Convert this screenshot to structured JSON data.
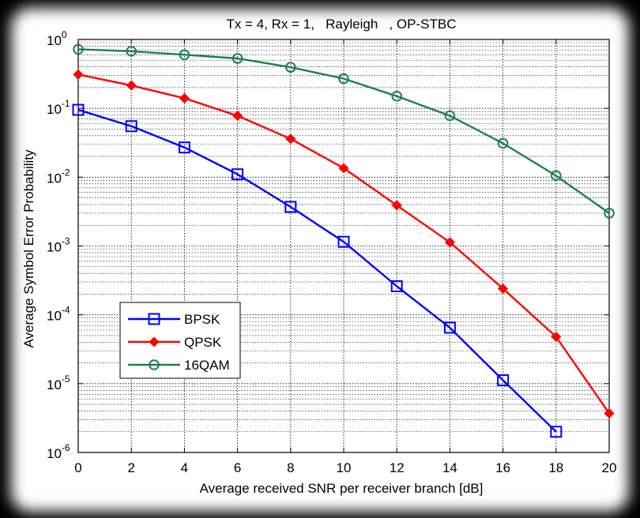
{
  "chart_data": {
    "type": "line",
    "title": "Tx = 4, Rx = 1,   Rayleigh   , OP-STBC",
    "xlabel": "Average received SNR per receiver branch [dB]",
    "ylabel": "Average Symbol Error Probability",
    "xlim": [
      0,
      20
    ],
    "ylim": [
      1e-06,
      1
    ],
    "yscale": "log",
    "grid": true,
    "legend_position": "lower-left",
    "x_ticks": [
      "0",
      "2",
      "4",
      "6",
      "8",
      "10",
      "12",
      "14",
      "16",
      "18",
      "20"
    ],
    "y_ticks": [
      {
        "base": "10",
        "exp": "0"
      },
      {
        "base": "10",
        "exp": "-1"
      },
      {
        "base": "10",
        "exp": "-2"
      },
      {
        "base": "10",
        "exp": "-3"
      },
      {
        "base": "10",
        "exp": "-4"
      },
      {
        "base": "10",
        "exp": "-5"
      },
      {
        "base": "10",
        "exp": "-6"
      }
    ],
    "series": [
      {
        "name": "BPSK",
        "color": "#0000ff",
        "marker": "square",
        "x": [
          0,
          2,
          4,
          6,
          8,
          10,
          12,
          14,
          16,
          18
        ],
        "values": [
          0.095,
          0.055,
          0.027,
          0.011,
          0.0037,
          0.00115,
          0.00026,
          6.5e-05,
          1.12e-05,
          2e-06
        ]
      },
      {
        "name": "QPSK",
        "color": "#ff0000",
        "marker": "diamond",
        "x": [
          0,
          2,
          4,
          6,
          8,
          10,
          12,
          14,
          16,
          18,
          20
        ],
        "values": [
          0.31,
          0.215,
          0.14,
          0.078,
          0.036,
          0.0135,
          0.0039,
          0.00113,
          0.00024,
          4.8e-05,
          3.7e-06
        ]
      },
      {
        "name": "16QAM",
        "color": "#1f7f4f",
        "marker": "circle",
        "x": [
          0,
          2,
          4,
          6,
          8,
          10,
          12,
          14,
          16,
          18,
          20
        ],
        "values": [
          0.72,
          0.675,
          0.6,
          0.53,
          0.395,
          0.27,
          0.15,
          0.078,
          0.031,
          0.0105,
          0.003
        ]
      }
    ]
  }
}
